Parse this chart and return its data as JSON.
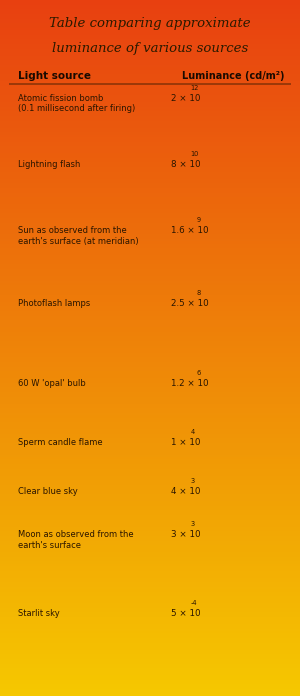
{
  "title_line1": "Table comparing approximate",
  "title_line2": "luminance of various sources",
  "header_col1": "Light source",
  "header_col2": "Luminance (cd/m²)",
  "rows": [
    {
      "source": "Atomic fission bomb\n(0.1 millisecond after firing)",
      "luminance_text": "2 × 10",
      "exponent": "12"
    },
    {
      "source": "Lightning flash",
      "luminance_text": "8 × 10",
      "exponent": "10"
    },
    {
      "source": "Sun as observed from the\nearth's surface (at meridian)",
      "luminance_text": "1.6 × 10",
      "exponent": "9"
    },
    {
      "source": "Photoflash lamps",
      "luminance_text": "2.5 × 10",
      "exponent": "8"
    },
    {
      "source": "60 W 'opal' bulb",
      "luminance_text": "1.2 × 10",
      "exponent": "6"
    },
    {
      "source": "Sperm candle flame",
      "luminance_text": "1 × 10",
      "exponent": "4"
    },
    {
      "source": "Clear blue sky",
      "luminance_text": "4 × 10",
      "exponent": "3"
    },
    {
      "source": "Moon as observed from the\nearth's surface",
      "luminance_text": "3 × 10",
      "exponent": "3"
    },
    {
      "source": "Starlit sky",
      "luminance_text": "5 × 10",
      "exponent": "-4"
    }
  ],
  "bg_color_top": "#e84010",
  "bg_color_bottom": "#f5c800",
  "title_color": "#2a1a00",
  "header_color": "#1a0a00",
  "text_color": "#2a1500",
  "fig_width": 3.0,
  "fig_height": 6.96,
  "dpi": 100
}
